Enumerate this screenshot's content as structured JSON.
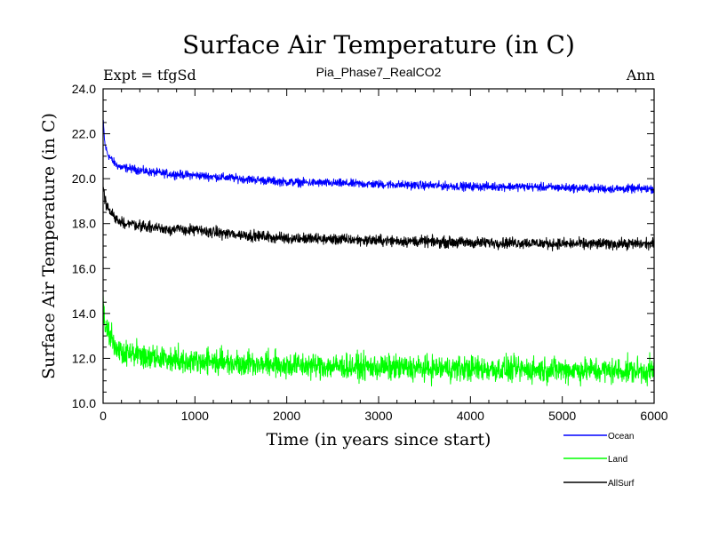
{
  "chart_data": {
    "type": "line",
    "title": "Surface Air Temperature (in C)",
    "subtitle": "Pia_Phase7_RealCO2",
    "experiment_label": "Expt = tfgSd",
    "period_label": "Ann",
    "xlabel": "Time (in years since start)",
    "ylabel": "Surface Air Temperature (in C)",
    "xlim": [
      0,
      6000
    ],
    "ylim": [
      10.0,
      24.0
    ],
    "x_ticks": [
      0,
      1000,
      2000,
      3000,
      4000,
      5000,
      6000
    ],
    "x_tick_labels": [
      "0",
      "1000",
      "2000",
      "3000",
      "4000",
      "5000",
      "6000"
    ],
    "y_ticks": [
      10,
      12,
      14,
      16,
      18,
      20,
      22,
      24
    ],
    "y_tick_labels": [
      "10.0",
      "12.0",
      "14.0",
      "16.0",
      "18.0",
      "20.0",
      "22.0",
      "24.0"
    ],
    "grid": false,
    "legend_position": "bottom-right outside",
    "series": [
      {
        "name": "Ocean",
        "color": "#0000ff",
        "x": [
          0,
          20,
          50,
          100,
          150,
          200,
          300,
          500,
          750,
          1000,
          1500,
          2000,
          2500,
          3000,
          3500,
          4000,
          4500,
          5000,
          5500,
          6000
        ],
        "values": [
          22.6,
          21.5,
          21.1,
          20.8,
          20.6,
          20.5,
          20.45,
          20.3,
          20.2,
          20.15,
          20.0,
          19.85,
          19.8,
          19.75,
          19.7,
          19.65,
          19.65,
          19.6,
          19.55,
          19.55
        ],
        "noise": 0.09
      },
      {
        "name": "Land",
        "color": "#00ff00",
        "x": [
          0,
          20,
          50,
          100,
          150,
          200,
          300,
          500,
          750,
          1000,
          1500,
          2000,
          2500,
          3000,
          3500,
          4000,
          4500,
          5000,
          5500,
          6000
        ],
        "values": [
          14.5,
          13.6,
          13.2,
          12.8,
          12.5,
          12.3,
          12.2,
          12.05,
          11.95,
          11.9,
          11.8,
          11.7,
          11.65,
          11.6,
          11.55,
          11.55,
          11.5,
          11.5,
          11.45,
          11.45
        ],
        "noise": 0.28
      },
      {
        "name": "AllSurf",
        "color": "#000000",
        "x": [
          0,
          20,
          50,
          100,
          150,
          200,
          300,
          500,
          750,
          1000,
          1500,
          2000,
          2500,
          3000,
          3500,
          4000,
          4500,
          5000,
          5500,
          6000
        ],
        "values": [
          19.8,
          19.0,
          18.7,
          18.4,
          18.2,
          18.05,
          18.0,
          17.85,
          17.75,
          17.7,
          17.5,
          17.35,
          17.3,
          17.25,
          17.2,
          17.15,
          17.15,
          17.1,
          17.1,
          17.1
        ],
        "noise": 0.12
      }
    ]
  }
}
